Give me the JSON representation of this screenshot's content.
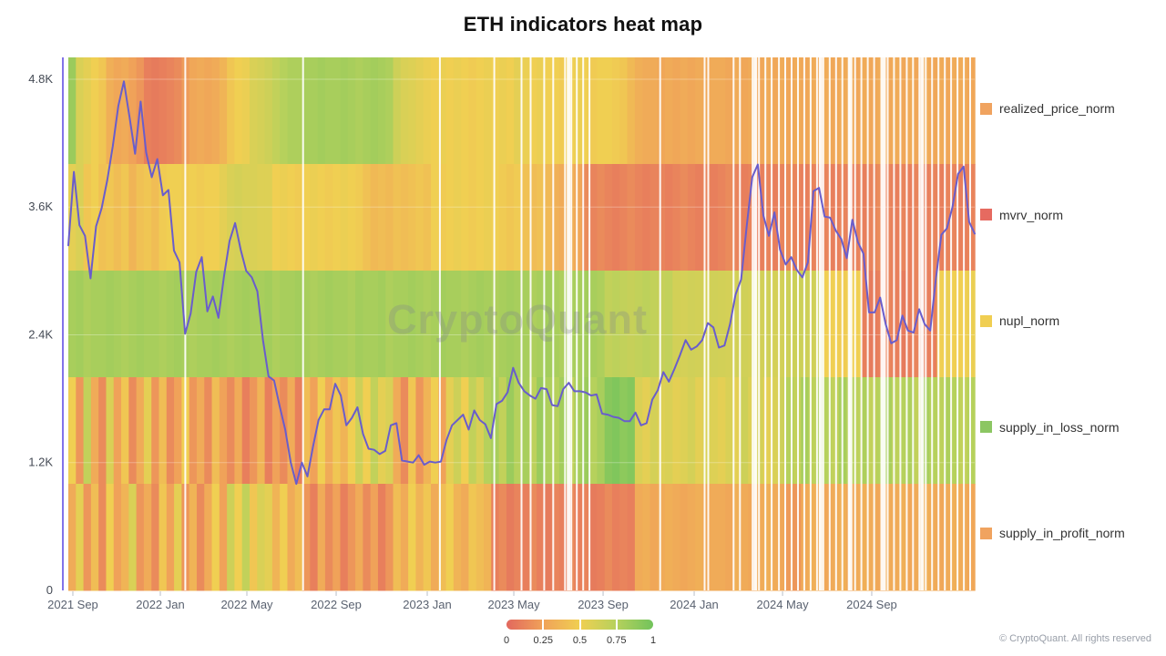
{
  "title": "ETH indicators heat map",
  "watermark": "CryptoQuant",
  "copyright": "© CryptoQuant. All rights reserved",
  "colors": {
    "price_line": "#695dcc",
    "axis_line": "#8273e8",
    "tick": "#b9bec8",
    "axis_text": "#5a6270",
    "legend_text": "#333333",
    "watermark_text": "rgba(128,133,140,0.30)",
    "grid_line": "rgba(255,255,255,0.30)"
  },
  "legend": [
    {
      "label": "realized_price_norm",
      "color": "#f0a35f"
    },
    {
      "label": "mvrv_norm",
      "color": "#e66a60"
    },
    {
      "label": "nupl_norm",
      "color": "#f0ce52"
    },
    {
      "label": "supply_in_loss_norm",
      "color": "#8cc663"
    },
    {
      "label": "supply_in_profit_norm",
      "color": "#f0a35f"
    }
  ],
  "y_axis": {
    "labels": [
      "0",
      "1.2K",
      "2.4K",
      "3.6K",
      "4.8K"
    ],
    "values": [
      0,
      1200,
      2400,
      3600,
      4800
    ]
  },
  "x_axis": {
    "ticks": [
      {
        "label": "2021 Sep",
        "f": 0.005
      },
      {
        "label": "2022 Jan",
        "f": 0.1015
      },
      {
        "label": "2022 May",
        "f": 0.197
      },
      {
        "label": "2022 Sep",
        "f": 0.2955
      },
      {
        "label": "2023 Jan",
        "f": 0.396
      },
      {
        "label": "2023 May",
        "f": 0.4915
      },
      {
        "label": "2023 Sep",
        "f": 0.59
      },
      {
        "label": "2024 Jan",
        "f": 0.6905
      },
      {
        "label": "2024 May",
        "f": 0.788
      },
      {
        "label": "2024 Sep",
        "f": 0.8864
      }
    ]
  },
  "colorbar": {
    "labels": [
      "0",
      "0.25",
      "0.5",
      "0.75",
      "1"
    ],
    "stops": [
      {
        "t": 0,
        "color": "#e2685e"
      },
      {
        "t": 0.25,
        "color": "#f0a259"
      },
      {
        "t": 0.5,
        "color": "#f0cf52"
      },
      {
        "t": 0.75,
        "color": "#b6d15c"
      },
      {
        "t": 1,
        "color": "#72c35c"
      }
    ]
  },
  "chart_data": {
    "type": "heatmap",
    "title": "ETH indicators heat map",
    "ylim": [
      0,
      5005
    ],
    "x_range": [
      "2021 Sep",
      "2024 Dec"
    ],
    "bands": [
      {
        "name": "realized_price_norm",
        "values": [
          0.85,
          0.6,
          0.55,
          0.5,
          0.45,
          0.32,
          0.28,
          0.3,
          0.25,
          0.2,
          0.1,
          0.08,
          0.1,
          0.12,
          0.15,
          0.22,
          0.28,
          0.3,
          0.28,
          0.3,
          0.35,
          0.45,
          0.5,
          0.52,
          0.6,
          0.62,
          0.65,
          0.7,
          0.75,
          0.78,
          0.78,
          0.8,
          0.8,
          0.82,
          0.8,
          0.8,
          0.82,
          0.8,
          0.78,
          0.8,
          0.82,
          0.8,
          0.78,
          0.65,
          0.6,
          0.58,
          0.55,
          0.52,
          0.5,
          0.52,
          0.5,
          0.52,
          0.5,
          0.48,
          0.5,
          0.52,
          0.5,
          0.52,
          0.5,
          0.55,
          0.52,
          0.5,
          0.52,
          0.5,
          0.5,
          0.48,
          0.5,
          0.52,
          0.5,
          0.48,
          0.5,
          0.5,
          0.48,
          0.45,
          0.38,
          0.32,
          0.3,
          0.3,
          0.28,
          0.3,
          0.28,
          0.3,
          0.28,
          0.3,
          0.28,
          0.3,
          0.3,
          0.28,
          0.3,
          0.28,
          0.3,
          0.28,
          0.3,
          0.28,
          0.3,
          0.28,
          0.3,
          0.28,
          0.3,
          0.28,
          0.3,
          0.28,
          0.3,
          0.3,
          0.28,
          0.3,
          0.28,
          0.3,
          0.28,
          0.3,
          0.28,
          0.3,
          0.28,
          0.3,
          0.28,
          0.3,
          0.28,
          0.3,
          0.3,
          0.28
        ]
      },
      {
        "name": "mvrv_norm",
        "values": [
          0.55,
          0.6,
          0.45,
          0.5,
          0.42,
          0.45,
          0.4,
          0.45,
          0.35,
          0.42,
          0.45,
          0.4,
          0.48,
          0.5,
          0.5,
          0.48,
          0.5,
          0.48,
          0.5,
          0.5,
          0.55,
          0.6,
          0.62,
          0.6,
          0.6,
          0.58,
          0.58,
          0.5,
          0.52,
          0.5,
          0.48,
          0.5,
          0.52,
          0.5,
          0.48,
          0.5,
          0.52,
          0.5,
          0.48,
          0.42,
          0.38,
          0.4,
          0.38,
          0.42,
          0.4,
          0.42,
          0.45,
          0.42,
          0.5,
          0.48,
          0.5,
          0.52,
          0.5,
          0.48,
          0.5,
          0.52,
          0.5,
          0.48,
          0.45,
          0.48,
          0.42,
          0.4,
          0.42,
          0.38,
          0.33,
          0.3,
          0.32,
          0.28,
          0.15,
          0.12,
          0.15,
          0.12,
          0.1,
          0.12,
          0.15,
          0.12,
          0.1,
          0.12,
          0.12,
          0.1,
          0.12,
          0.15,
          0.12,
          0.1,
          0.12,
          0.1,
          0.12,
          0.15,
          0.12,
          0.1,
          0.12,
          0.1,
          0.12,
          0.1,
          0.12,
          0.15,
          0.12,
          0.1,
          0.12,
          0.1,
          0.12,
          0.1,
          0.12,
          0.1,
          0.12,
          0.1,
          0.12,
          0.15,
          0.12,
          0.1,
          0.12,
          0.1,
          0.12,
          0.1,
          0.12,
          0.1,
          0.12,
          0.12,
          0.1,
          0.12
        ]
      },
      {
        "name": "nupl_norm",
        "values": [
          0.8,
          0.82,
          0.78,
          0.8,
          0.8,
          0.82,
          0.8,
          0.78,
          0.8,
          0.82,
          0.8,
          0.8,
          0.78,
          0.8,
          0.82,
          0.8,
          0.78,
          0.8,
          0.8,
          0.82,
          0.8,
          0.78,
          0.8,
          0.82,
          0.8,
          0.8,
          0.82,
          0.78,
          0.8,
          0.8,
          0.82,
          0.8,
          0.78,
          0.8,
          0.82,
          0.8,
          0.8,
          0.78,
          0.82,
          0.8,
          0.8,
          0.82,
          0.78,
          0.8,
          0.8,
          0.82,
          0.8,
          0.78,
          0.8,
          0.82,
          0.8,
          0.8,
          0.78,
          0.8,
          0.82,
          0.8,
          0.78,
          0.8,
          0.82,
          0.8,
          0.8,
          0.78,
          0.8,
          0.82,
          0.8,
          0.78,
          0.8,
          0.8,
          0.82,
          0.8,
          0.78,
          0.7,
          0.72,
          0.7,
          0.68,
          0.7,
          0.72,
          0.7,
          0.68,
          0.7,
          0.63,
          0.62,
          0.64,
          0.63,
          0.62,
          0.64,
          0.63,
          0.62,
          0.63,
          0.64,
          0.62,
          0.63,
          0.64,
          0.62,
          0.63,
          0.65,
          0.66,
          0.65,
          0.64,
          0.65,
          0.5,
          0.5,
          0.48,
          0.5,
          0.5,
          0.1,
          0.08,
          0.1,
          0.12,
          0.1,
          0.08,
          0.1,
          0.12,
          0.1,
          0.1,
          0.5,
          0.52,
          0.5,
          0.5,
          0.52
        ]
      },
      {
        "name": "supply_in_loss_norm",
        "values": [
          0.5,
          0.2,
          0.7,
          0.3,
          0.15,
          0.6,
          0.25,
          0.45,
          0.15,
          0.3,
          0.55,
          0.2,
          0.4,
          0.15,
          0.25,
          0.5,
          0.2,
          0.3,
          0.15,
          0.4,
          0.25,
          0.15,
          0.3,
          0.1,
          0.2,
          0.35,
          0.1,
          0.25,
          0.15,
          0.3,
          0.1,
          0.4,
          0.25,
          0.5,
          0.3,
          0.45,
          0.35,
          0.5,
          0.65,
          0.5,
          0.7,
          0.55,
          0.6,
          0.3,
          0.15,
          0.45,
          0.2,
          0.35,
          0.5,
          0.25,
          0.55,
          0.65,
          0.5,
          0.7,
          0.6,
          0.75,
          0.8,
          0.7,
          0.85,
          0.75,
          0.8,
          0.72,
          0.85,
          0.78,
          0.75,
          0.82,
          0.7,
          0.8,
          0.85,
          0.75,
          0.8,
          0.92,
          0.95,
          0.9,
          0.93,
          0.6,
          0.55,
          0.62,
          0.58,
          0.6,
          0.55,
          0.58,
          0.62,
          0.55,
          0.6,
          0.58,
          0.55,
          0.6,
          0.55,
          0.65,
          0.58,
          0.62,
          0.55,
          0.6,
          0.65,
          0.75,
          0.7,
          0.8,
          0.72,
          0.78,
          0.75,
          0.7,
          0.8,
          0.75,
          0.72,
          0.78,
          0.7,
          0.75,
          0.8,
          0.72,
          0.75,
          0.78,
          0.7,
          0.8,
          0.75,
          0.72,
          0.78,
          0.75,
          0.7,
          0.75
        ]
      },
      {
        "name": "supply_in_profit_norm",
        "values": [
          0.3,
          0.55,
          0.2,
          0.4,
          0.15,
          0.5,
          0.25,
          0.35,
          0.6,
          0.2,
          0.3,
          0.15,
          0.45,
          0.25,
          0.55,
          0.2,
          0.35,
          0.15,
          0.3,
          0.5,
          0.25,
          0.65,
          0.5,
          0.7,
          0.45,
          0.6,
          0.55,
          0.35,
          0.5,
          0.3,
          0.4,
          0.2,
          0.1,
          0.3,
          0.15,
          0.25,
          0.1,
          0.2,
          0.3,
          0.15,
          0.25,
          0.1,
          0.2,
          0.4,
          0.3,
          0.5,
          0.35,
          0.45,
          0.3,
          0.4,
          0.5,
          0.35,
          0.3,
          0.45,
          0.4,
          0.35,
          0.1,
          0.15,
          0.08,
          0.12,
          0.1,
          0.15,
          0.1,
          0.08,
          0.12,
          0.1,
          0.15,
          0.1,
          0.12,
          0.08,
          0.1,
          0.15,
          0.1,
          0.12,
          0.1,
          0.3,
          0.32,
          0.28,
          0.3,
          0.32,
          0.3,
          0.28,
          0.3,
          0.32,
          0.28,
          0.3,
          0.3,
          0.28,
          0.32,
          0.3,
          0.28,
          0.3,
          0.32,
          0.3,
          0.28,
          0.22,
          0.2,
          0.3,
          0.32,
          0.3,
          0.28,
          0.3,
          0.32,
          0.28,
          0.3,
          0.32,
          0.3,
          0.28,
          0.3,
          0.3,
          0.32,
          0.28,
          0.3,
          0.32,
          0.3,
          0.28,
          0.3,
          0.32,
          0.3,
          0.28
        ]
      }
    ],
    "price": {
      "name": "ETH price",
      "unit": "K USD",
      "values": [
        3.24,
        3.93,
        3.43,
        3.33,
        2.93,
        3.42,
        3.59,
        3.85,
        4.17,
        4.55,
        4.78,
        4.45,
        4.1,
        4.59,
        4.11,
        3.88,
        4.05,
        3.71,
        3.76,
        3.19,
        3.08,
        2.41,
        2.6,
        2.99,
        3.13,
        2.62,
        2.76,
        2.56,
        2.95,
        3.28,
        3.45,
        3.2,
        3.0,
        2.94,
        2.81,
        2.35,
        2.01,
        1.97,
        1.73,
        1.51,
        1.2,
        1.0,
        1.2,
        1.07,
        1.35,
        1.6,
        1.7,
        1.7,
        1.94,
        1.83,
        1.55,
        1.62,
        1.72,
        1.47,
        1.33,
        1.32,
        1.28,
        1.31,
        1.55,
        1.57,
        1.22,
        1.21,
        1.2,
        1.27,
        1.18,
        1.21,
        1.2,
        1.21,
        1.41,
        1.55,
        1.6,
        1.65,
        1.51,
        1.69,
        1.6,
        1.56,
        1.43,
        1.75,
        1.78,
        1.86,
        2.09,
        1.95,
        1.87,
        1.83,
        1.8,
        1.9,
        1.89,
        1.74,
        1.73,
        1.89,
        1.95,
        1.87,
        1.87,
        1.86,
        1.83,
        1.84,
        1.66,
        1.65,
        1.63,
        1.62,
        1.59,
        1.59,
        1.67,
        1.55,
        1.57,
        1.79,
        1.88,
        2.05,
        1.96,
        2.08,
        2.21,
        2.35,
        2.26,
        2.29,
        2.35,
        2.51,
        2.47,
        2.28,
        2.3,
        2.5,
        2.78,
        2.92,
        3.42,
        3.88,
        4.0,
        3.52,
        3.33,
        3.55,
        3.2,
        3.06,
        3.13,
        3.01,
        2.94,
        3.08,
        3.75,
        3.78,
        3.51,
        3.5,
        3.38,
        3.3,
        3.12,
        3.48,
        3.27,
        3.16,
        2.61,
        2.61,
        2.75,
        2.5,
        2.32,
        2.35,
        2.58,
        2.44,
        2.42,
        2.64,
        2.5,
        2.44,
        2.92,
        3.34,
        3.4,
        3.6,
        3.91,
        3.98,
        3.46,
        3.35
      ]
    },
    "gaps": [
      0.129,
      0.259,
      0.41,
      0.47,
      0.5,
      0.51,
      0.525,
      0.535,
      0.548,
      0.555,
      0.561,
      0.568,
      0.575,
      0.653,
      0.702,
      0.706,
      0.734,
      0.741,
      0.755,
      0.762,
      0.769,
      0.776,
      0.784,
      0.791,
      0.798,
      0.805,
      0.812,
      0.819,
      0.826,
      0.833,
      0.84,
      0.847,
      0.854,
      0.861,
      0.868,
      0.875,
      0.882,
      0.889,
      0.897,
      0.904,
      0.911,
      0.918,
      0.925,
      0.932,
      0.939,
      0.946,
      0.953,
      0.96,
      0.967,
      0.974,
      0.981,
      0.988,
      0.995
    ],
    "wide_gaps": [
      0.552,
      0.758,
      0.83,
      0.863,
      0.9,
      0.942
    ]
  }
}
